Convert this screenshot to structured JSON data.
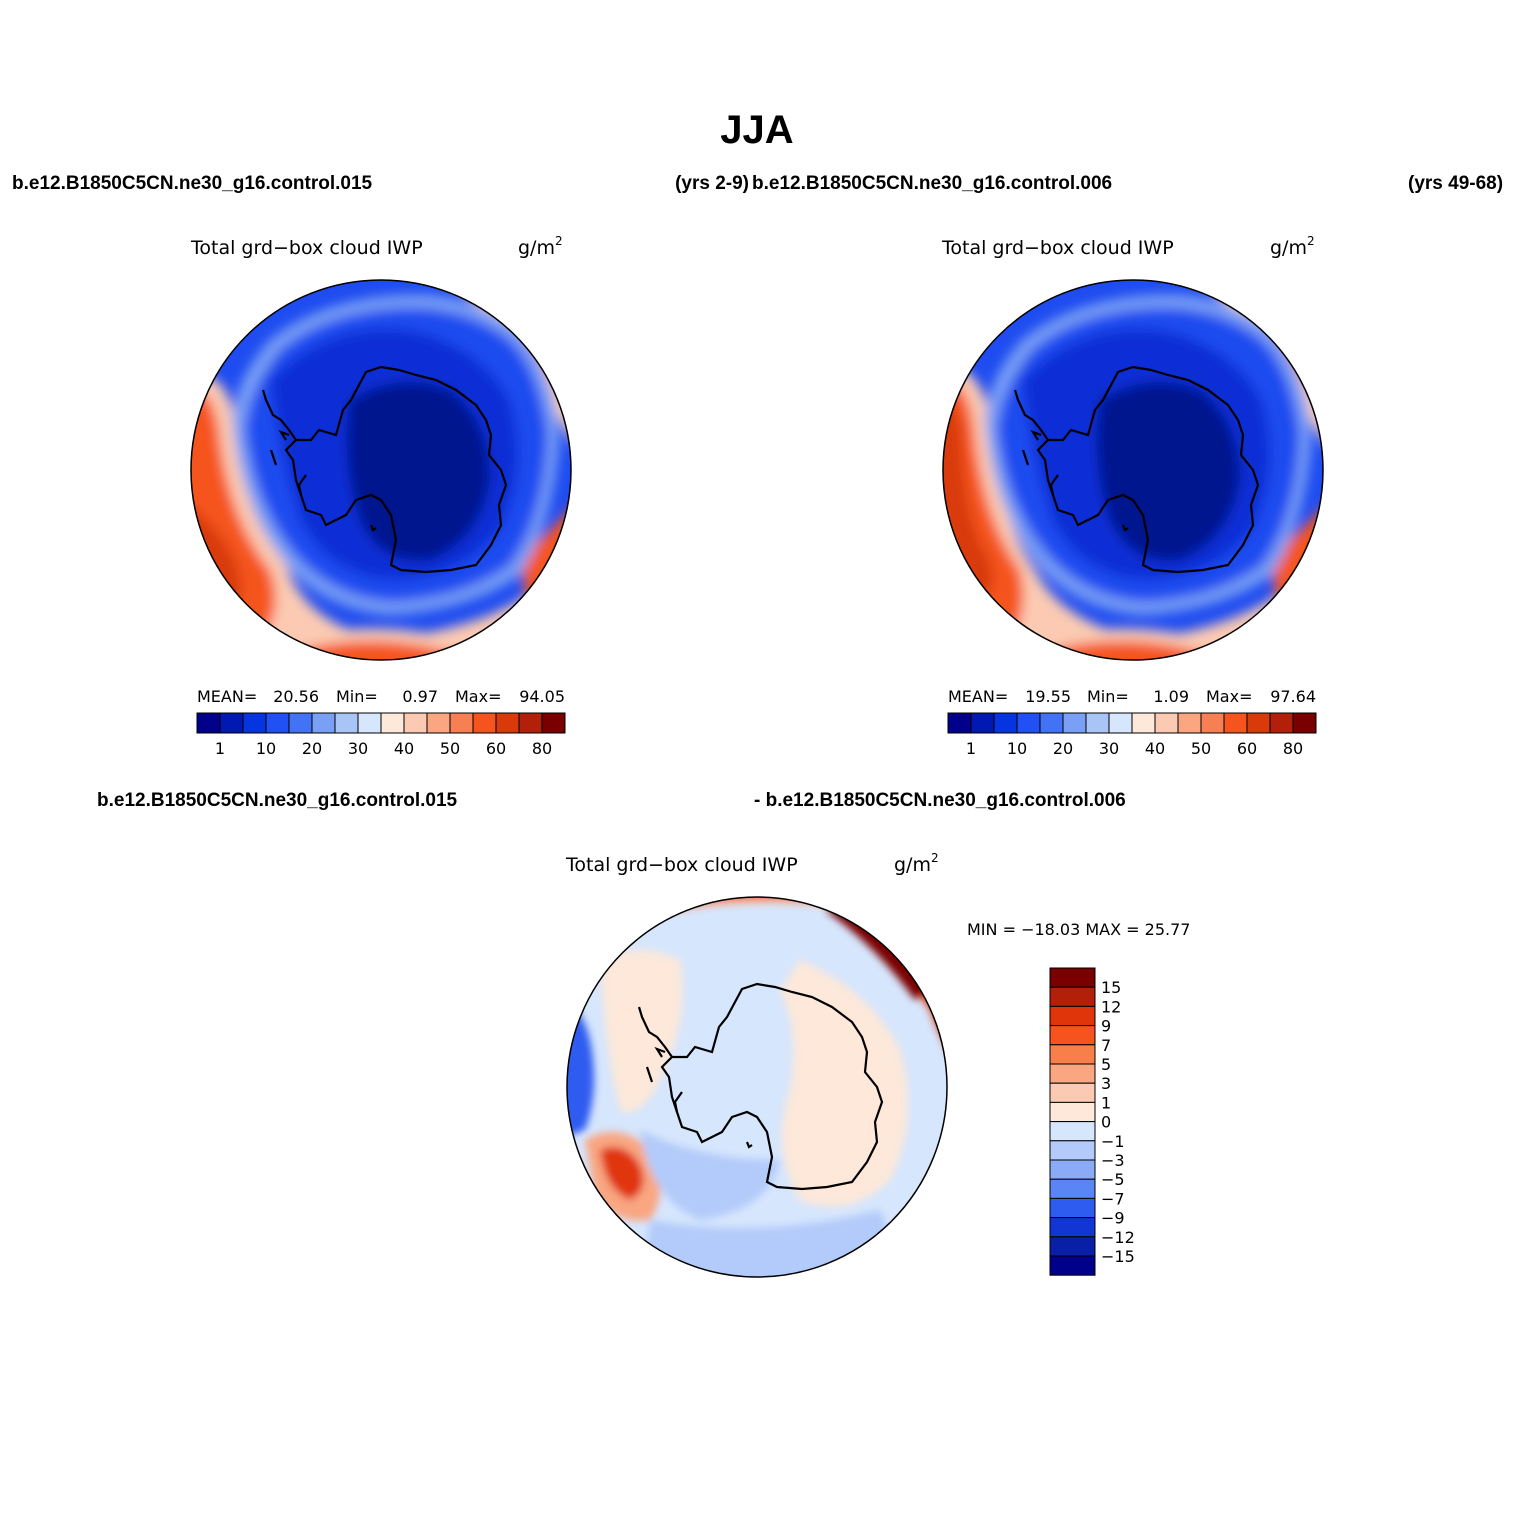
{
  "page_title": "JJA",
  "panel_top_left": {
    "case_name": "b.e12.B1850C5CN.ne30_g16.control.015",
    "years": "(yrs 2-9)",
    "variable_title": "Total grd−box cloud IWP",
    "units": "g/m",
    "units_exponent": "2",
    "stats": {
      "mean_label": "MEAN=",
      "mean_value": "20.56",
      "min_label": "Min=",
      "min_value": "0.97",
      "max_label": "Max=",
      "max_value": "94.05"
    }
  },
  "panel_top_right": {
    "case_name": "b.e12.B1850C5CN.ne30_g16.control.006",
    "years": "(yrs 49-68)",
    "variable_title": "Total grd−box cloud IWP",
    "units": "g/m",
    "units_exponent": "2",
    "stats": {
      "mean_label": "MEAN=",
      "mean_value": "19.55",
      "min_label": "Min=",
      "min_value": "1.09",
      "max_label": "Max=",
      "max_value": "97.64"
    }
  },
  "panel_bottom": {
    "case_a": "b.e12.B1850C5CN.ne30_g16.control.015",
    "case_b": "- b.e12.B1850C5CN.ne30_g16.control.006",
    "variable_title": "Total grd−box cloud IWP",
    "units": "g/m",
    "units_exponent": "2",
    "minmax_text": "MIN = −18.03 MAX =  25.77"
  },
  "abs_colorbar": {
    "colors": [
      "#00008a",
      "#0019b2",
      "#0535e0",
      "#2150f5",
      "#4373f5",
      "#7aa0f5",
      "#a9c4f7",
      "#d6e6fd",
      "#fde8d9",
      "#fccab2",
      "#f9a681",
      "#f77f54",
      "#f5541f",
      "#d93a0a",
      "#b3200a",
      "#7a0000"
    ],
    "tick_labels": [
      "1",
      "10",
      "20",
      "30",
      "40",
      "50",
      "60",
      "80"
    ]
  },
  "diff_colorbar": {
    "colors_top_to_bottom": [
      "#7a0000",
      "#b3200a",
      "#e0340a",
      "#f5541f",
      "#f77f4a",
      "#f9a681",
      "#fccab2",
      "#fde8d9",
      "#d6e6fd",
      "#b3cbfa",
      "#8cabf7",
      "#5a86f5",
      "#2f5cf0",
      "#1236d4",
      "#0a1fa8",
      "#00008a"
    ],
    "tick_labels": [
      "15",
      "12",
      "9",
      "7",
      "5",
      "3",
      "1",
      "0",
      "−1",
      "−3",
      "−5",
      "−7",
      "−9",
      "−12",
      "−15"
    ]
  },
  "map_fields": {
    "abs_deep": "#00178f",
    "abs_mid": "#0a2fd6",
    "abs_blue": "#1e4cf0",
    "abs_light_blue": "#7aa0f5",
    "abs_pale": "#d6e6fd",
    "abs_peach": "#fccab2",
    "abs_orange": "#f5541f",
    "abs_red": "#d93a0a",
    "abs_dark": "#8a0a00",
    "diff_pale_blue": "#d6e6fd",
    "diff_light_blue": "#b3cbfa",
    "diff_peach": "#fde8d9",
    "diff_orange": "#f9a681",
    "diff_red": "#e0340a",
    "diff_dark": "#7a0000",
    "diff_blue": "#2f5cf0",
    "coast": "#000000"
  }
}
